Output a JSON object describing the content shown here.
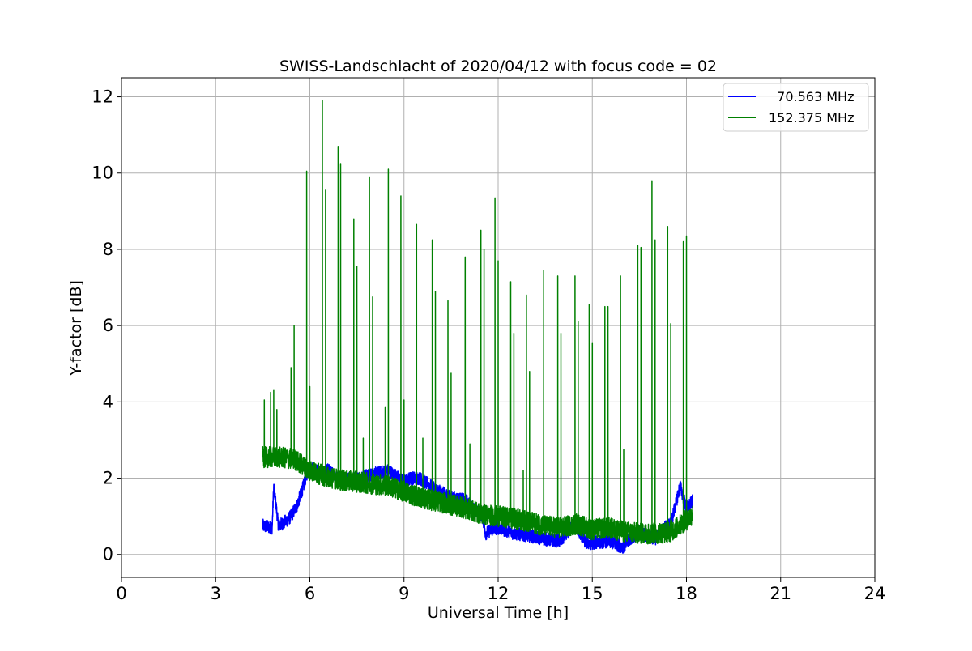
{
  "chart_data": {
    "type": "line",
    "title": "SWISS-Landschlacht of 2020/04/12 with focus code = 02",
    "xlabel": "Universal Time [h]",
    "ylabel": "Y-factor [dB]",
    "xlim": [
      0,
      24
    ],
    "ylim": [
      -0.6,
      12.5
    ],
    "xticks": [
      0,
      3,
      6,
      9,
      12,
      15,
      18,
      21,
      24
    ],
    "xtick_labels": [
      "0",
      "3",
      "6",
      "9",
      "12",
      "15",
      "18",
      "21",
      "24"
    ],
    "yticks": [
      0,
      2,
      4,
      6,
      8,
      10,
      12
    ],
    "ytick_labels": [
      "0",
      "2",
      "4",
      "6",
      "8",
      "10",
      "12"
    ],
    "grid": true,
    "legend_position": "top-right",
    "colors": {
      "axes": "#000000",
      "grid": "#b0b0b0",
      "legend_frame": "#cccccc"
    },
    "series": [
      {
        "name": "  70.563 MHz",
        "color": "#0000ff",
        "x": [
          4.5,
          4.8,
          4.85,
          5.0,
          5.2,
          5.4,
          5.6,
          5.8,
          5.9,
          6.0,
          6.2,
          6.4,
          6.6,
          6.8,
          7.0,
          7.5,
          8.0,
          8.5,
          9.0,
          9.2,
          9.5,
          10.0,
          10.5,
          11.0,
          11.2,
          11.5,
          11.6,
          11.8,
          12.0,
          12.5,
          13.0,
          13.2,
          13.5,
          14.0,
          14.4,
          14.5,
          14.8,
          15.0,
          15.5,
          15.8,
          16.0,
          16.2,
          16.5,
          16.8,
          17.0,
          17.3,
          17.5,
          17.8,
          18.0,
          18.2
        ],
        "y": [
          0.75,
          0.7,
          1.8,
          0.75,
          0.85,
          1.0,
          1.3,
          1.8,
          2.1,
          2.3,
          2.2,
          2.1,
          2.25,
          2.0,
          1.95,
          2.0,
          2.1,
          2.2,
          1.9,
          2.0,
          2.0,
          1.7,
          1.5,
          1.4,
          1.2,
          1.0,
          0.55,
          0.65,
          0.7,
          0.55,
          0.5,
          0.45,
          0.4,
          0.35,
          0.8,
          0.7,
          0.3,
          0.3,
          0.35,
          0.25,
          0.2,
          0.4,
          0.6,
          0.45,
          0.4,
          0.7,
          0.8,
          1.8,
          1.2,
          1.4
        ]
      },
      {
        "name": "152.375 MHz",
        "color": "#008000",
        "x": [
          4.5,
          5.0,
          5.5,
          6.0,
          6.5,
          7.0,
          7.5,
          8.0,
          8.5,
          9.0,
          9.5,
          10.0,
          10.5,
          11.0,
          11.5,
          12.0,
          12.5,
          13.0,
          13.5,
          14.0,
          14.5,
          15.0,
          15.5,
          16.0,
          16.5,
          17.0,
          17.5,
          18.0,
          18.2
        ],
        "y": [
          2.55,
          2.55,
          2.5,
          2.2,
          2.05,
          1.95,
          1.9,
          1.85,
          1.8,
          1.65,
          1.5,
          1.4,
          1.3,
          1.2,
          1.05,
          1.0,
          0.95,
          0.85,
          0.75,
          0.7,
          0.8,
          0.65,
          0.7,
          0.6,
          0.55,
          0.55,
          0.6,
          0.9,
          1.05
        ],
        "spikes": [
          {
            "x": 4.55,
            "y": 4.05
          },
          {
            "x": 4.75,
            "y": 4.25
          },
          {
            "x": 4.85,
            "y": 4.3
          },
          {
            "x": 4.95,
            "y": 3.8
          },
          {
            "x": 5.4,
            "y": 4.9
          },
          {
            "x": 5.5,
            "y": 6.0
          },
          {
            "x": 5.9,
            "y": 10.05
          },
          {
            "x": 6.0,
            "y": 4.4
          },
          {
            "x": 6.4,
            "y": 11.9
          },
          {
            "x": 6.5,
            "y": 9.55
          },
          {
            "x": 6.9,
            "y": 10.7
          },
          {
            "x": 6.98,
            "y": 10.25
          },
          {
            "x": 7.4,
            "y": 8.8
          },
          {
            "x": 7.5,
            "y": 7.55
          },
          {
            "x": 7.7,
            "y": 3.05
          },
          {
            "x": 7.9,
            "y": 9.9
          },
          {
            "x": 8.0,
            "y": 6.75
          },
          {
            "x": 8.4,
            "y": 3.85
          },
          {
            "x": 8.5,
            "y": 10.1
          },
          {
            "x": 8.9,
            "y": 9.4
          },
          {
            "x": 9.0,
            "y": 4.05
          },
          {
            "x": 9.4,
            "y": 8.65
          },
          {
            "x": 9.6,
            "y": 3.05
          },
          {
            "x": 9.9,
            "y": 8.25
          },
          {
            "x": 10.0,
            "y": 6.9
          },
          {
            "x": 10.4,
            "y": 6.65
          },
          {
            "x": 10.5,
            "y": 4.75
          },
          {
            "x": 10.95,
            "y": 7.8
          },
          {
            "x": 11.1,
            "y": 2.9
          },
          {
            "x": 11.45,
            "y": 8.5
          },
          {
            "x": 11.55,
            "y": 8.0
          },
          {
            "x": 11.9,
            "y": 9.35
          },
          {
            "x": 12.0,
            "y": 7.7
          },
          {
            "x": 12.4,
            "y": 7.15
          },
          {
            "x": 12.5,
            "y": 5.8
          },
          {
            "x": 12.8,
            "y": 2.2
          },
          {
            "x": 12.9,
            "y": 6.8
          },
          {
            "x": 13.0,
            "y": 4.8
          },
          {
            "x": 13.45,
            "y": 7.45
          },
          {
            "x": 13.9,
            "y": 7.3
          },
          {
            "x": 14.0,
            "y": 5.8
          },
          {
            "x": 14.45,
            "y": 7.3
          },
          {
            "x": 14.55,
            "y": 6.1
          },
          {
            "x": 14.9,
            "y": 6.55
          },
          {
            "x": 15.0,
            "y": 5.55
          },
          {
            "x": 15.4,
            "y": 6.5
          },
          {
            "x": 15.5,
            "y": 6.5
          },
          {
            "x": 15.9,
            "y": 7.3
          },
          {
            "x": 16.0,
            "y": 2.75
          },
          {
            "x": 16.45,
            "y": 8.1
          },
          {
            "x": 16.55,
            "y": 8.05
          },
          {
            "x": 16.9,
            "y": 9.8
          },
          {
            "x": 17.0,
            "y": 8.25
          },
          {
            "x": 17.4,
            "y": 8.6
          },
          {
            "x": 17.5,
            "y": 6.05
          },
          {
            "x": 17.9,
            "y": 8.2
          },
          {
            "x": 18.0,
            "y": 8.35
          }
        ]
      }
    ]
  }
}
